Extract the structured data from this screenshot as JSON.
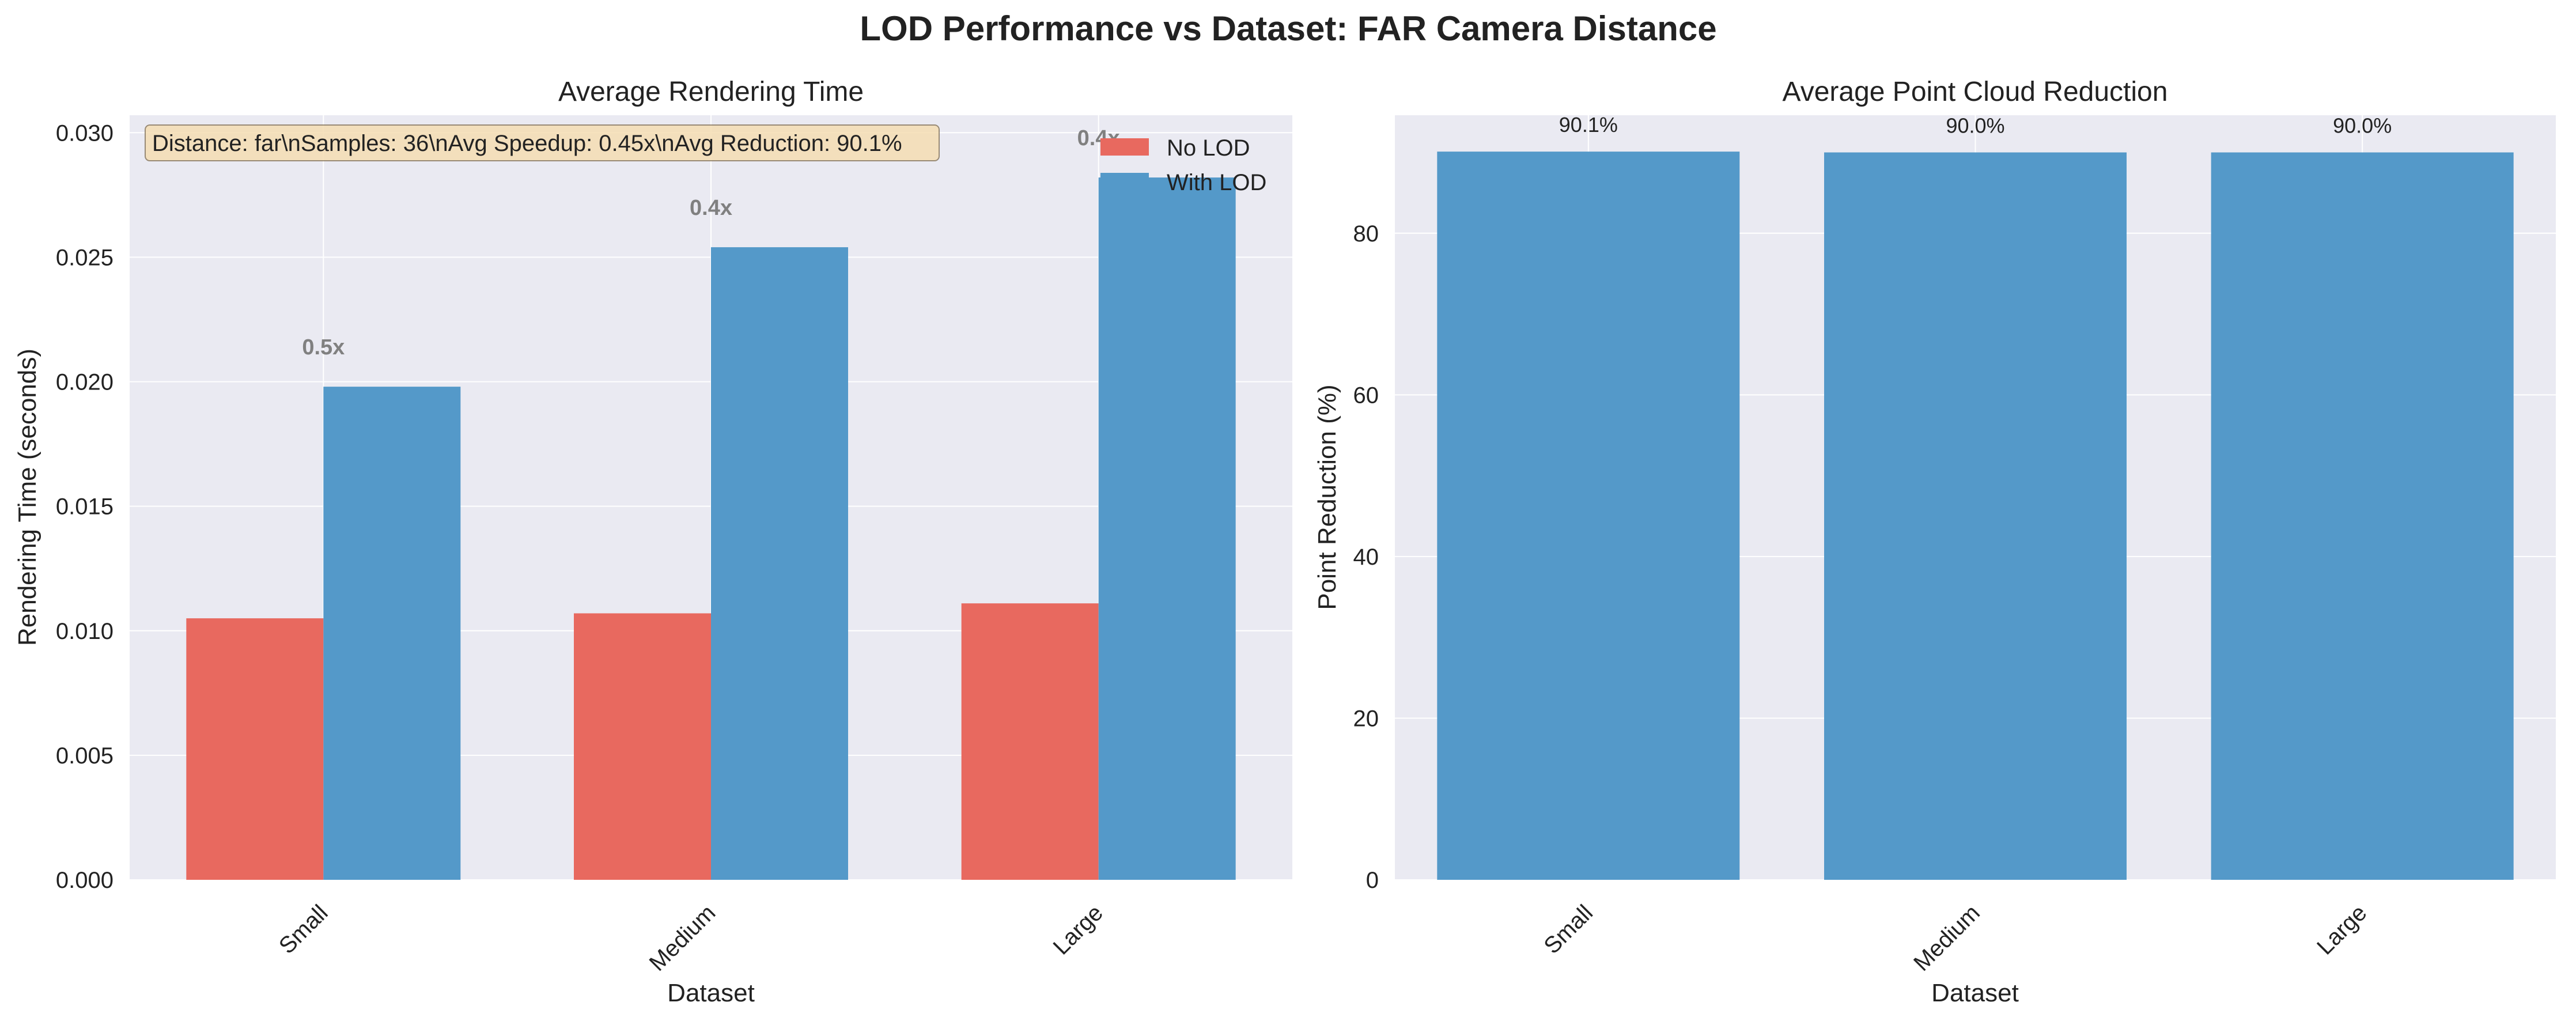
{
  "figure": {
    "title": "LOD Performance vs Dataset: FAR Camera Distance"
  },
  "colors": {
    "no_lod": "#e8695f",
    "with_lod": "#5499c9",
    "reduction": "#5499c9",
    "plot_bg": "#eaeaf2",
    "grid": "#ffffff",
    "annotation_text": "#808080",
    "info_box_bg": "#f5deb3"
  },
  "info_box": {
    "text": "Distance: far\\nSamples: 36\\nAvg Speedup: 0.45x\\nAvg Reduction: 90.1%"
  },
  "chart_data": [
    {
      "type": "bar",
      "title": "Average Rendering Time",
      "xlabel": "Dataset",
      "ylabel": "Rendering Time (seconds)",
      "categories": [
        "Small",
        "Medium",
        "Large"
      ],
      "ylim": [
        0,
        0.0307
      ],
      "yticks": [
        0.0,
        0.005,
        0.01,
        0.015,
        0.02,
        0.025,
        0.03
      ],
      "ytick_labels": [
        "0.000",
        "0.005",
        "0.010",
        "0.015",
        "0.020",
        "0.025",
        "0.030"
      ],
      "grid": true,
      "legend_position": "upper right",
      "series": [
        {
          "name": "No LOD",
          "values": [
            0.0105,
            0.0107,
            0.0111
          ]
        },
        {
          "name": "With LOD",
          "values": [
            0.0198,
            0.0254,
            0.0282
          ]
        }
      ],
      "annotations": [
        "0.5x",
        "0.4x",
        "0.4x"
      ]
    },
    {
      "type": "bar",
      "title": "Average Point Cloud Reduction",
      "xlabel": "Dataset",
      "ylabel": "Point Reduction (%)",
      "categories": [
        "Small",
        "Medium",
        "Large"
      ],
      "ylim": [
        0,
        94.6
      ],
      "yticks": [
        0,
        20,
        40,
        60,
        80
      ],
      "ytick_labels": [
        "0",
        "20",
        "40",
        "60",
        "80"
      ],
      "grid": true,
      "values": [
        90.1,
        90.0,
        90.0
      ],
      "value_labels": [
        "90.1%",
        "90.0%",
        "90.0%"
      ]
    }
  ]
}
